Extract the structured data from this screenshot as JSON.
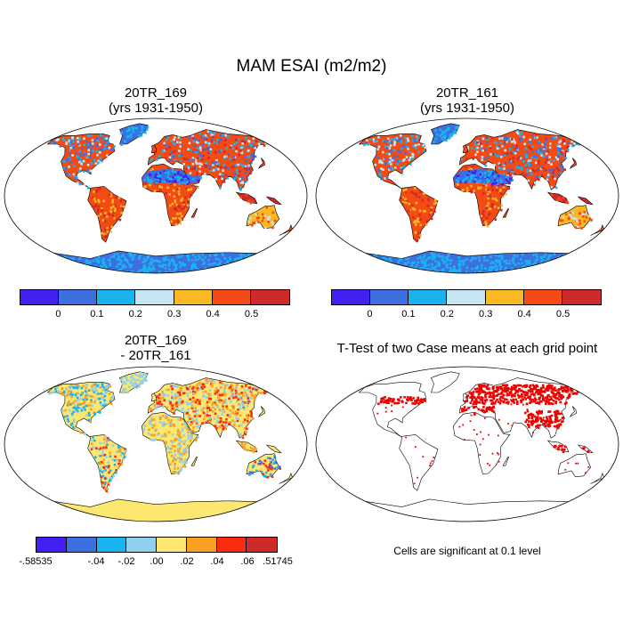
{
  "title": "MAM ESAI (m2/m2)",
  "panels": [
    {
      "id": "map1",
      "line1": "20TR_169",
      "line2": "(yrs 1931-1950)",
      "kind": "mean"
    },
    {
      "id": "map2",
      "line1": "20TR_161",
      "line2": "(yrs 1931-1950)",
      "kind": "mean"
    },
    {
      "id": "map3",
      "line1": "20TR_169",
      "line2": "- 20TR_161",
      "kind": "diff"
    },
    {
      "id": "map4",
      "line1": "T-Test of two Case means at each grid point",
      "line2": "",
      "kind": "ttest"
    }
  ],
  "colorbars": {
    "mean": {
      "colors": [
        "#4320f2",
        "#3e6fe0",
        "#19b3ef",
        "#c6e4f2",
        "#f9b824",
        "#f44a13",
        "#cf2a2a"
      ],
      "labels": [
        "0",
        "0.1",
        "0.2",
        "0.3",
        "0.4",
        "0.5"
      ]
    },
    "diff": {
      "colors": [
        "#4320f2",
        "#3e6fe0",
        "#19b3ef",
        "#8fd0ec",
        "#fce871",
        "#f9a024",
        "#fb2b12",
        "#cf2a2a"
      ],
      "labels": [
        "-.58535",
        "-.04",
        "-.02",
        ".00",
        ".02",
        ".04",
        ".06",
        ".51745"
      ]
    }
  },
  "significance_note": "Cells are significant at 0.1 level",
  "map_colors": {
    "ocean": "#ffffff",
    "significant": "#ee0000"
  }
}
